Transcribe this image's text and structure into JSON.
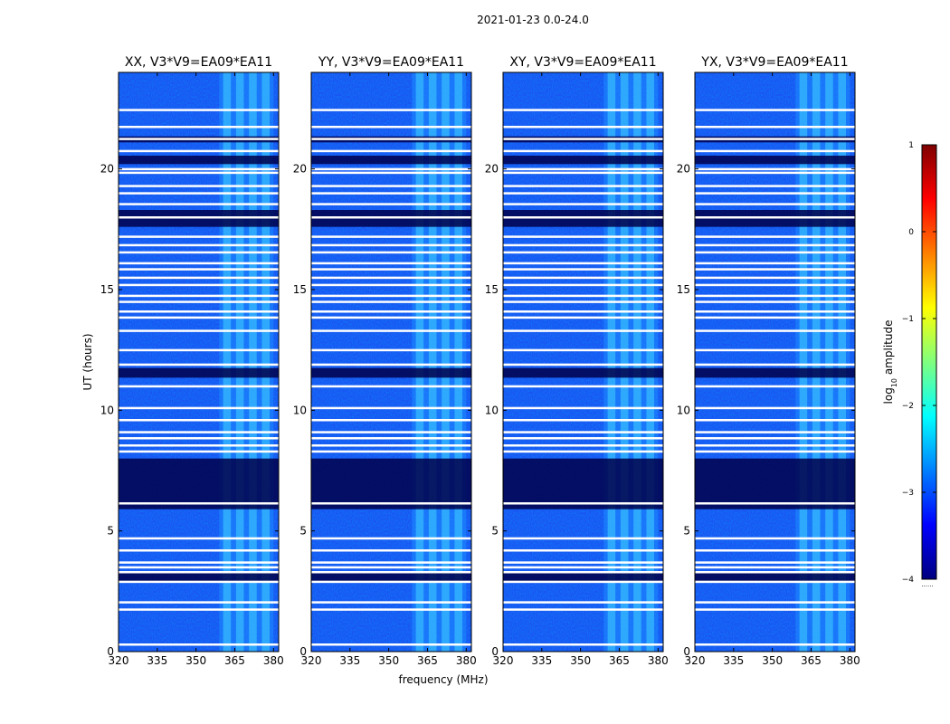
{
  "chart_data": {
    "type": "heatmap",
    "suptitle": "2021-01-23 0.0-24.0",
    "xlabel": "frequency (MHz)",
    "ylabel": "UT (hours)",
    "xlim": [
      320,
      382
    ],
    "ylim": [
      0,
      24
    ],
    "x_ticks": [
      320,
      335,
      350,
      365,
      380
    ],
    "y_ticks": [
      0,
      5,
      10,
      15,
      20
    ],
    "active_band_mhz": [
      359,
      380
    ],
    "panels": [
      {
        "title": "XX, V3*V9=EA09*EA11"
      },
      {
        "title": "YY, V3*V9=EA09*EA11"
      },
      {
        "title": "XY, V3*V9=EA09*EA11"
      },
      {
        "title": "YX, V3*V9=EA09*EA11"
      }
    ],
    "blank_time_rows_hours": [
      0.3,
      1.75,
      2.05,
      2.9,
      3.3,
      3.5,
      3.7,
      4.2,
      4.7,
      6.15,
      8.3,
      8.55,
      8.85,
      9.1,
      9.6,
      10.1,
      11.0,
      11.9,
      12.5,
      13.3,
      13.85,
      14.1,
      14.5,
      14.75,
      15.2,
      15.5,
      15.85,
      16.1,
      16.55,
      16.85,
      17.2,
      18.0,
      18.55,
      19.0,
      19.3,
      19.85,
      20.0,
      20.75,
      21.25,
      21.75,
      22.45
    ],
    "dark_time_bands_hours": [
      [
        2.9,
        3.25
      ],
      [
        5.9,
        8.0
      ],
      [
        11.35,
        11.75
      ],
      [
        17.6,
        18.3
      ],
      [
        20.2,
        20.55
      ],
      [
        21.1,
        21.35
      ]
    ],
    "colorbar": {
      "label": "log10 amplitude",
      "label_main": "log",
      "label_sub": "10",
      "label_rest": " amplitude",
      "ticks": [
        -4,
        -3,
        -2,
        -1,
        0,
        1
      ],
      "range": [
        -4,
        1
      ],
      "bottom_note": "......",
      "colors": [
        "#00007f",
        "#0000ff",
        "#007fff",
        "#00ffff",
        "#7fff7f",
        "#ffff00",
        "#ff7f00",
        "#ff0000",
        "#7f0000"
      ]
    }
  }
}
